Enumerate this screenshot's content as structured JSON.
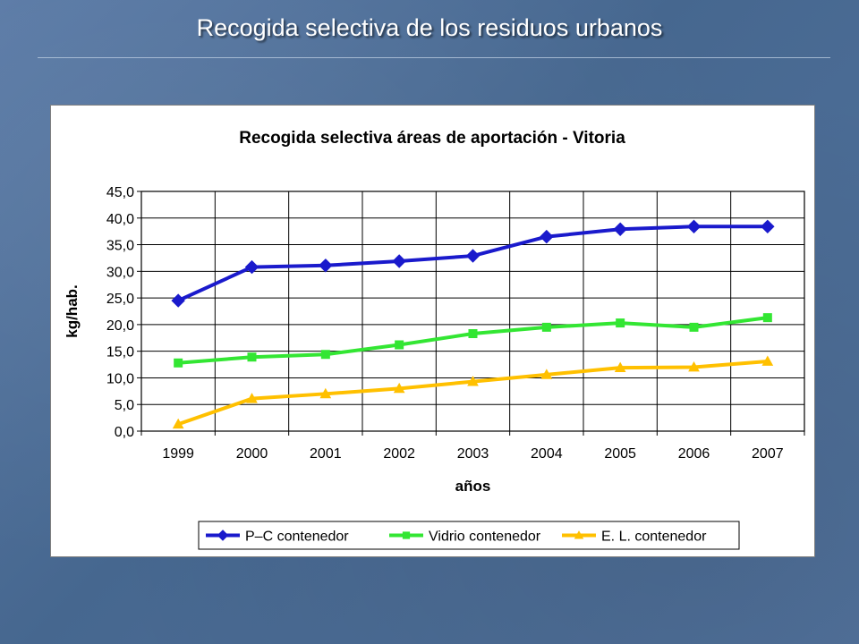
{
  "slide": {
    "title": "Recogida selectiva de los residuos urbanos"
  },
  "chart_data": {
    "type": "line",
    "title": "Recogida selectiva áreas de aportación - Vitoria",
    "xlabel": "años",
    "ylabel": "kg/hab.",
    "categories": [
      "1999",
      "2000",
      "2001",
      "2002",
      "2003",
      "2004",
      "2005",
      "2006",
      "2007"
    ],
    "ylim": [
      0,
      45
    ],
    "ytick_step": 5,
    "ytick_labels": [
      "0,0",
      "5,0",
      "10,0",
      "15,0",
      "20,0",
      "25,0",
      "30,0",
      "35,0",
      "40,0",
      "45,0"
    ],
    "grid": true,
    "legend_position": "bottom",
    "series": [
      {
        "name": "P–C contenedor",
        "color": "#1a1acc",
        "marker": "diamond",
        "values": [
          24.5,
          30.8,
          31.1,
          31.9,
          32.9,
          36.5,
          37.9,
          38.4,
          38.4
        ]
      },
      {
        "name": "Vidrio  contenedor",
        "color": "#33e633",
        "marker": "square",
        "values": [
          12.8,
          13.9,
          14.4,
          16.2,
          18.3,
          19.5,
          20.3,
          19.5,
          21.3
        ]
      },
      {
        "name": "E. L. contenedor",
        "color": "#ffc000",
        "marker": "triangle",
        "values": [
          1.3,
          6.1,
          7.0,
          8.0,
          9.3,
          10.6,
          11.9,
          12.0,
          13.1
        ]
      }
    ]
  }
}
